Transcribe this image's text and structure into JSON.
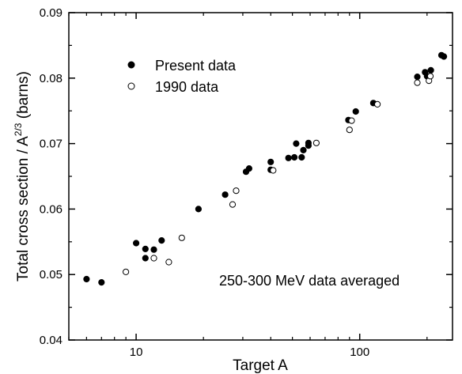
{
  "chart_data": {
    "type": "scatter",
    "xlabel": "Target A",
    "ylabel": "Total cross section / A",
    "ylabel_exponent": "2/3",
    "ylabel_unit": " (barns)",
    "x_scale": "log",
    "xlim": [
      5,
      260
    ],
    "ylim": [
      0.04,
      0.09
    ],
    "y_ticks": [
      0.04,
      0.05,
      0.06,
      0.07,
      0.08,
      0.09
    ],
    "y_tick_labels": [
      "0.04",
      "0.05",
      "0.06",
      "0.07",
      "0.08",
      "0.09"
    ],
    "x_ticks": [
      10,
      100
    ],
    "x_tick_labels": [
      "10",
      "100"
    ],
    "grid": false,
    "legend_position": "top-left",
    "annotation": "250-300 MeV data averaged",
    "series": [
      {
        "name": "Present data",
        "marker": "filled-circle",
        "color": "#000000",
        "points": [
          [
            6,
            0.0493
          ],
          [
            7,
            0.0488
          ],
          [
            10,
            0.0548
          ],
          [
            11,
            0.0539
          ],
          [
            11,
            0.0525
          ],
          [
            12,
            0.0538
          ],
          [
            13,
            0.0552
          ],
          [
            19,
            0.06
          ],
          [
            25,
            0.0622
          ],
          [
            31,
            0.0657
          ],
          [
            32,
            0.0662
          ],
          [
            40,
            0.066
          ],
          [
            40,
            0.0672
          ],
          [
            48,
            0.0678
          ],
          [
            51,
            0.0679
          ],
          [
            52,
            0.07
          ],
          [
            55,
            0.0679
          ],
          [
            56,
            0.069
          ],
          [
            59,
            0.0697
          ],
          [
            59,
            0.0701
          ],
          [
            89,
            0.0736
          ],
          [
            96,
            0.0749
          ],
          [
            115,
            0.0762
          ],
          [
            181,
            0.0802
          ],
          [
            196,
            0.0809
          ],
          [
            200,
            0.0803
          ],
          [
            208,
            0.0812
          ],
          [
            232,
            0.0835
          ],
          [
            238,
            0.0833
          ]
        ]
      },
      {
        "name": "1990 data",
        "marker": "open-circle",
        "color": "#000000",
        "points": [
          [
            9,
            0.0504
          ],
          [
            12,
            0.0525
          ],
          [
            14,
            0.0519
          ],
          [
            16,
            0.0556
          ],
          [
            27,
            0.0607
          ],
          [
            28,
            0.0628
          ],
          [
            41,
            0.0659
          ],
          [
            64,
            0.0701
          ],
          [
            90,
            0.0721
          ],
          [
            92,
            0.0735
          ],
          [
            120,
            0.076
          ],
          [
            181,
            0.0793
          ],
          [
            204,
            0.0796
          ],
          [
            207,
            0.0803
          ]
        ]
      }
    ]
  }
}
